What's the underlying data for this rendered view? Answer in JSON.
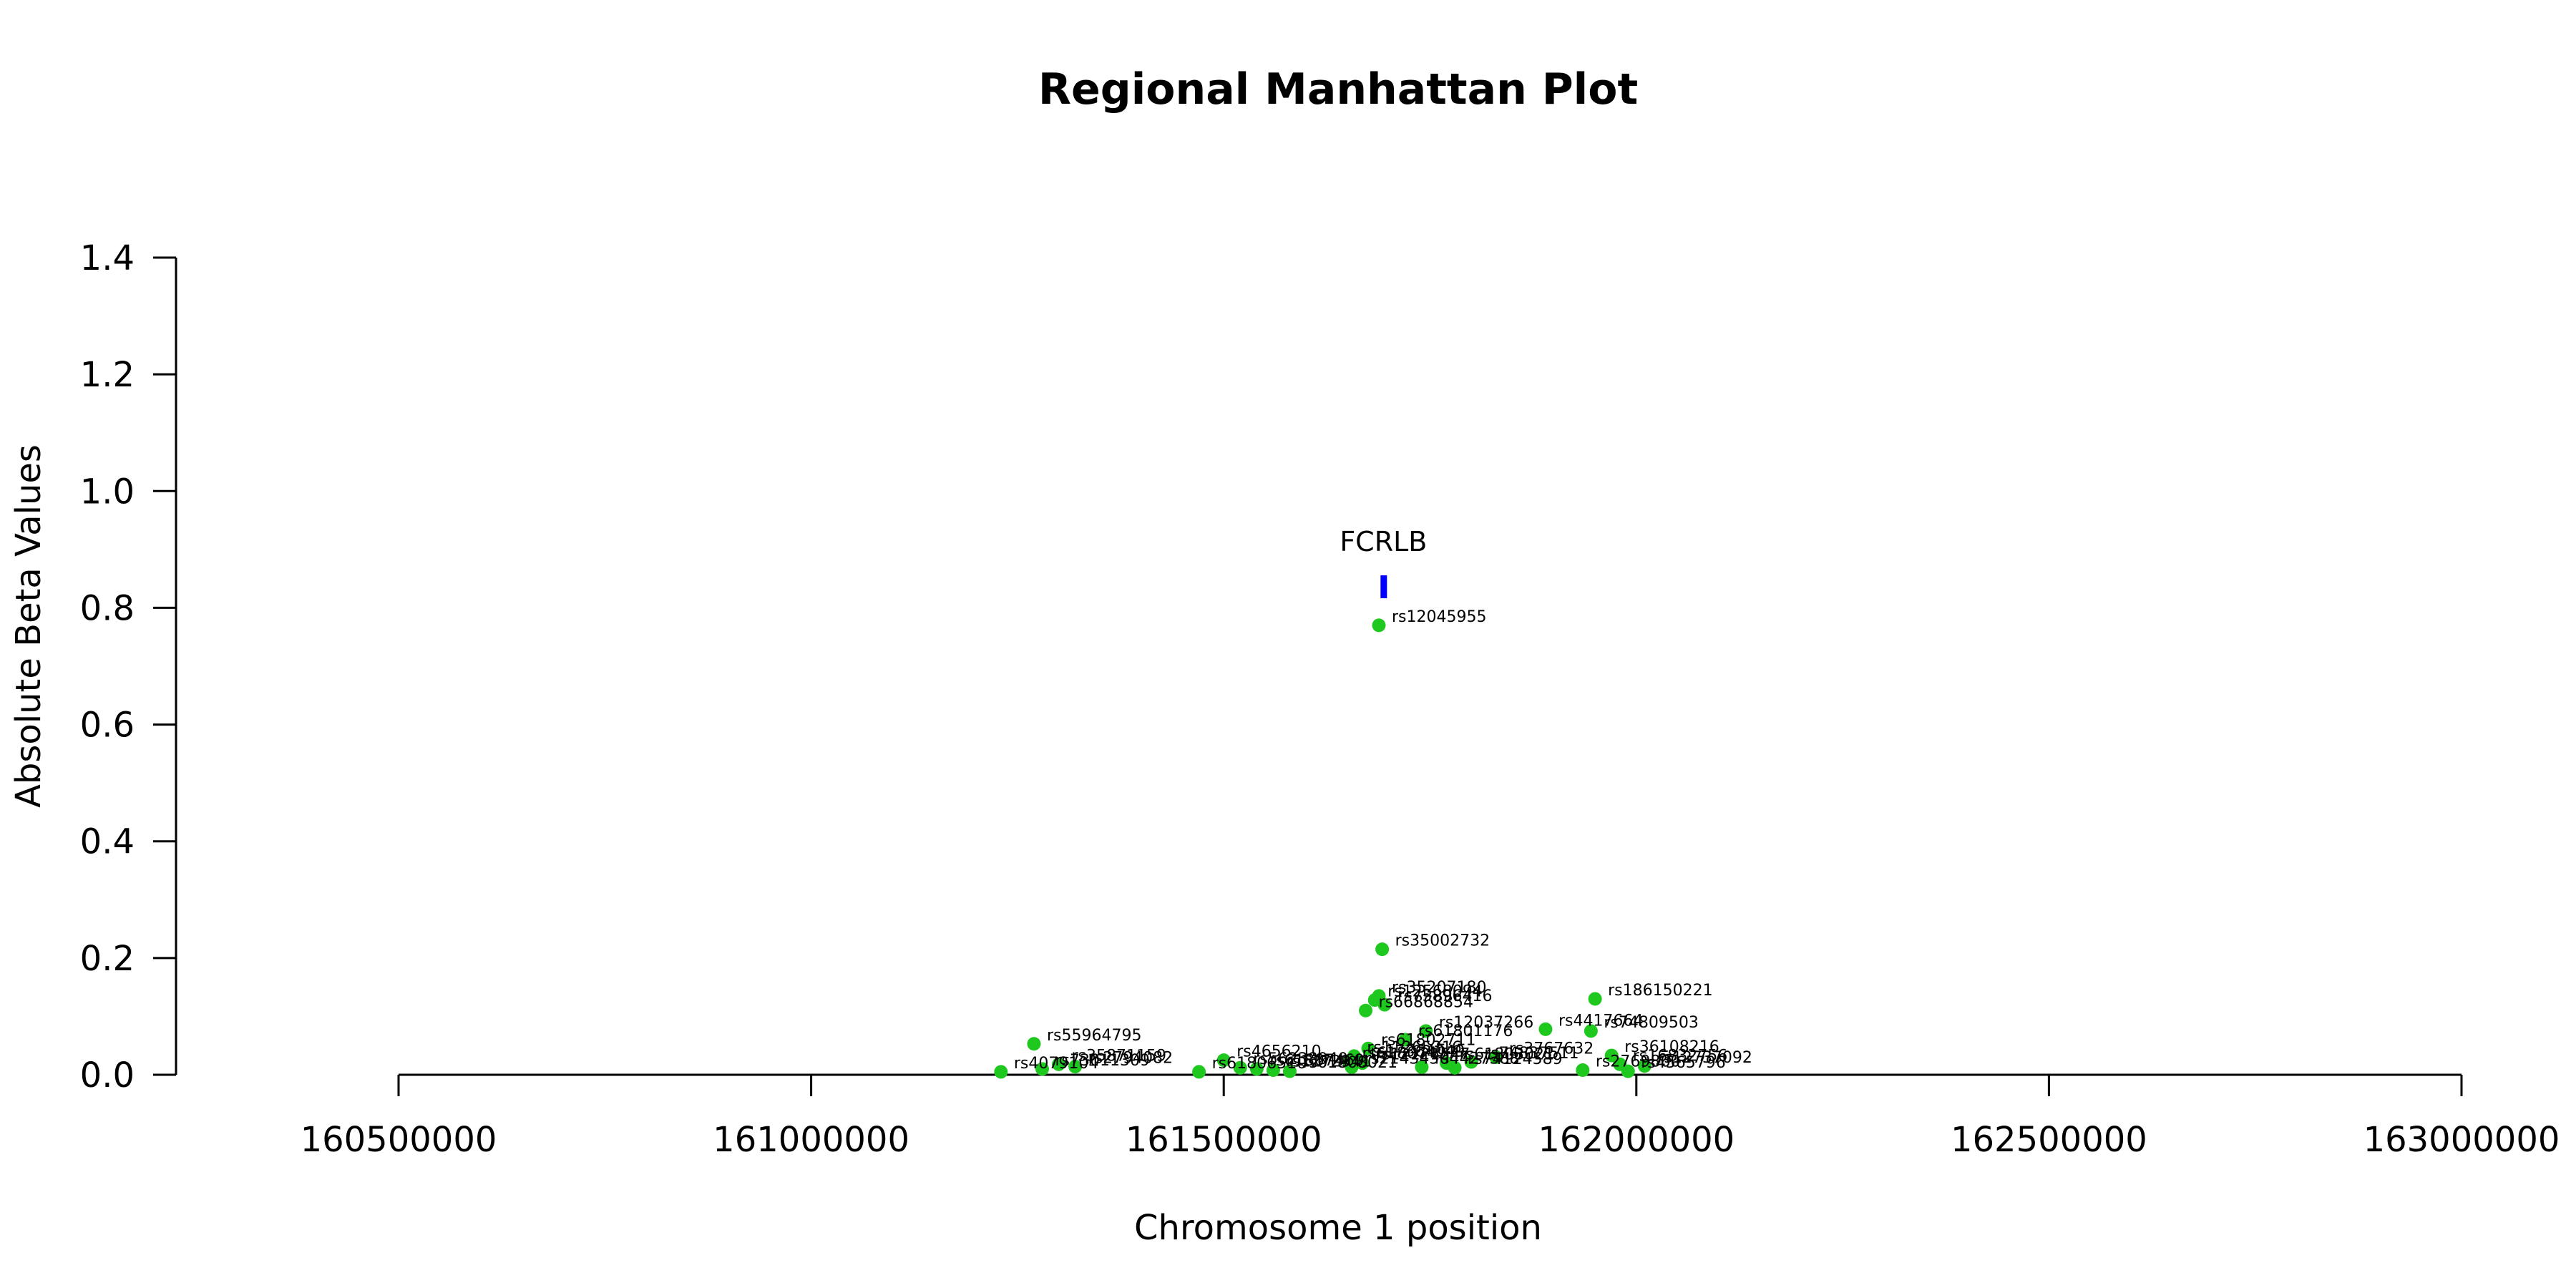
{
  "chart_data": {
    "type": "scatter",
    "title": "Regional Manhattan Plot",
    "xlabel": "Chromosome 1 position",
    "ylabel": "Absolute Beta Values",
    "xlim": [
      160230000,
      163000000
    ],
    "ylim": [
      0,
      1.4
    ],
    "x_ticks": [
      160500000,
      161000000,
      161500000,
      162000000,
      162500000,
      163000000
    ],
    "y_ticks": [
      0.0,
      0.2,
      0.4,
      0.6,
      0.8,
      1.0,
      1.2,
      1.4
    ],
    "x_tick_labels": [
      "160500000",
      "161000000",
      "161500000",
      "162000000",
      "162500000",
      "163000000"
    ],
    "y_tick_labels": [
      "0.0",
      "0.2",
      "0.4",
      "0.6",
      "0.8",
      "1.0",
      "1.2",
      "1.4"
    ],
    "point_color": "#1ec81e",
    "gene_color": "#0000ff",
    "genes": [
      {
        "name": "FCRLB",
        "start": 161690000,
        "end": 161697000,
        "y": 0.836
      }
    ],
    "points": [
      {
        "x": 161688000,
        "y": 0.77,
        "label": "rs12045955"
      },
      {
        "x": 161692000,
        "y": 0.215,
        "label": "rs35002732"
      },
      {
        "x": 161950000,
        "y": 0.13,
        "label": "rs186150221"
      },
      {
        "x": 161688000,
        "y": 0.135,
        "label": "rs35207180"
      },
      {
        "x": 161683000,
        "y": 0.128,
        "label": "rs12568094"
      },
      {
        "x": 161695000,
        "y": 0.12,
        "label": "rs75896416"
      },
      {
        "x": 161672000,
        "y": 0.11,
        "label": "rs66868854"
      },
      {
        "x": 161745000,
        "y": 0.075,
        "label": "rs12037266"
      },
      {
        "x": 161890000,
        "y": 0.078,
        "label": "rs4417664"
      },
      {
        "x": 161945000,
        "y": 0.075,
        "label": "rs74809503"
      },
      {
        "x": 161720000,
        "y": 0.06,
        "label": "rs61801176"
      },
      {
        "x": 161270000,
        "y": 0.053,
        "label": "rs55964795"
      },
      {
        "x": 161675000,
        "y": 0.045,
        "label": "rs61802711"
      },
      {
        "x": 161970000,
        "y": 0.033,
        "label": "rs36108216"
      },
      {
        "x": 161830000,
        "y": 0.03,
        "label": "rs3767632"
      },
      {
        "x": 161500000,
        "y": 0.025,
        "label": "rs4656210"
      },
      {
        "x": 161658000,
        "y": 0.032,
        "label": "rs11265316"
      },
      {
        "x": 161662000,
        "y": 0.025,
        "label": "rs17364049"
      },
      {
        "x": 161652000,
        "y": 0.022,
        "label": "rs61807497"
      },
      {
        "x": 161668000,
        "y": 0.02,
        "label": "rs12121547"
      },
      {
        "x": 161770000,
        "y": 0.02,
        "label": "rs61803021"
      },
      {
        "x": 161800000,
        "y": 0.022,
        "label": "rs74837511"
      },
      {
        "x": 161655000,
        "y": 0.013,
        "label": "rs2143450"
      },
      {
        "x": 161740000,
        "y": 0.013,
        "label": "rs4427388"
      },
      {
        "x": 161780000,
        "y": 0.012,
        "label": "rs74124589"
      },
      {
        "x": 161520000,
        "y": 0.012,
        "label": "rs56238940"
      },
      {
        "x": 161540000,
        "y": 0.01,
        "label": "rs61807469"
      },
      {
        "x": 161560000,
        "y": 0.008,
        "label": "rs12729417"
      },
      {
        "x": 161580000,
        "y": 0.006,
        "label": "rs61808021"
      },
      {
        "x": 161470000,
        "y": 0.005,
        "label": "rs61806510"
      },
      {
        "x": 161980000,
        "y": 0.018,
        "label": "rs16832756"
      },
      {
        "x": 162010000,
        "y": 0.015,
        "label": "rs12737092"
      },
      {
        "x": 161935000,
        "y": 0.008,
        "label": "rs2769860"
      },
      {
        "x": 161990000,
        "y": 0.006,
        "label": "rs4565796"
      },
      {
        "x": 161300000,
        "y": 0.018,
        "label": "rs35871159"
      },
      {
        "x": 161320000,
        "y": 0.014,
        "label": "rs2794082"
      },
      {
        "x": 161280000,
        "y": 0.01,
        "label": "rs73011309"
      },
      {
        "x": 161230000,
        "y": 0.005,
        "label": "rs4079104"
      }
    ]
  }
}
